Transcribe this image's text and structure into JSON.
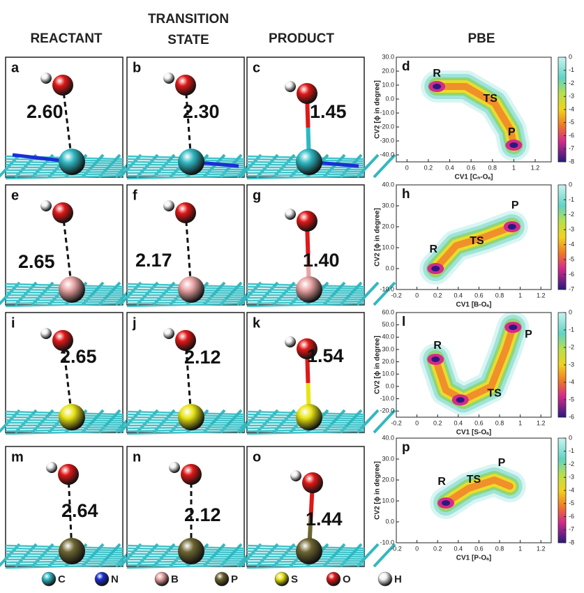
{
  "figure": {
    "headers": [
      "REACTANT",
      "TRANSITION STATE",
      "PRODUCT",
      "PBE"
    ],
    "rows": [
      {
        "panels": [
          {
            "letter": "a",
            "distance": "2.60"
          },
          {
            "letter": "b",
            "distance": "2.30"
          },
          {
            "letter": "c",
            "distance": "1.45"
          }
        ]
      },
      {
        "panels": [
          {
            "letter": "e",
            "distance": "2.65"
          },
          {
            "letter": "f",
            "distance": "2.17"
          },
          {
            "letter": "g",
            "distance": "1.40"
          }
        ]
      },
      {
        "panels": [
          {
            "letter": "i",
            "distance": "2.65"
          },
          {
            "letter": "j",
            "distance": "2.12"
          },
          {
            "letter": "k",
            "distance": "1.54"
          }
        ]
      },
      {
        "panels": [
          {
            "letter": "m",
            "distance": "2.64"
          },
          {
            "letter": "n",
            "distance": "2.12"
          },
          {
            "letter": "o",
            "distance": "1.44"
          }
        ]
      }
    ],
    "legend": [
      {
        "symbol": "C",
        "color": "#2fb8c2"
      },
      {
        "symbol": "N",
        "color": "#1a2fd6"
      },
      {
        "symbol": "B",
        "color": "#e9a3a3"
      },
      {
        "symbol": "P",
        "color": "#6d6531"
      },
      {
        "symbol": "S",
        "color": "#e8e414"
      },
      {
        "symbol": "O",
        "color": "#e01818"
      },
      {
        "symbol": "H",
        "color": "#f2f2f2"
      }
    ]
  },
  "chart_data": [
    {
      "type": "contour",
      "letter": "d",
      "xlabel": "CV1 [Cₙ-Oₐ]",
      "ylabel": "CV2 [ϕ in degree]",
      "xlim": [
        -0.1,
        1.35
      ],
      "xticks": [
        0,
        0.2,
        0.4,
        0.6,
        0.8,
        1,
        1.2
      ],
      "ylim": [
        -45,
        30
      ],
      "yticks": [
        {
          "value": 30,
          "label": "30.0"
        },
        {
          "value": 20,
          "label": "20.0"
        },
        {
          "value": 10,
          "label": "10.0"
        },
        {
          "value": 0,
          "label": "0.0"
        },
        {
          "value": -10,
          "label": "-10.0"
        },
        {
          "value": -20,
          "label": "-20.0"
        },
        {
          "value": -30,
          "label": "-30.0"
        },
        {
          "value": -40,
          "label": "-40.0"
        }
      ],
      "clim": [
        -8,
        0
      ],
      "cticks": [
        0,
        -1,
        -2,
        -3,
        -4,
        -5,
        -6,
        -7,
        -8
      ],
      "annotations": [
        "R",
        "TS",
        "P"
      ]
    },
    {
      "type": "contour",
      "letter": "h",
      "xlabel": "CV1 [B-Oₐ]",
      "ylabel": "CV2 [ϕ in degree]",
      "xlim": [
        -0.2,
        1.3
      ],
      "xticks": [
        -0.2,
        0,
        0.2,
        0.4,
        0.6,
        0.8,
        1,
        1.2
      ],
      "ylim": [
        -10,
        40
      ],
      "yticks": [
        {
          "value": 40,
          "label": "40.0"
        },
        {
          "value": 30,
          "label": "30.0"
        },
        {
          "value": 20,
          "label": "20.0"
        },
        {
          "value": 10,
          "label": "10.0"
        },
        {
          "value": 0,
          "label": "0.0"
        },
        {
          "value": -10,
          "label": "-10.0"
        }
      ],
      "clim": [
        -7,
        0
      ],
      "cticks": [
        0,
        -1,
        -2,
        -3,
        -4,
        -5,
        -6,
        -7
      ],
      "annotations": [
        "R",
        "TS",
        "P"
      ]
    },
    {
      "type": "contour",
      "letter": "l",
      "xlabel": "CV1 [S-Oₐ]",
      "ylabel": "CV2 [ϕ in degree]",
      "xlim": [
        -0.2,
        1.3
      ],
      "xticks": [
        -0.2,
        0,
        0.2,
        0.4,
        0.6,
        0.8,
        1,
        1.2
      ],
      "ylim": [
        -25,
        60
      ],
      "yticks": [
        {
          "value": 60,
          "label": "60.0"
        },
        {
          "value": 50,
          "label": "50.0"
        },
        {
          "value": 40,
          "label": "40.0"
        },
        {
          "value": 30,
          "label": "30.0"
        },
        {
          "value": 20,
          "label": "20.0"
        },
        {
          "value": 10,
          "label": "10.0"
        },
        {
          "value": 0,
          "label": "0.0"
        },
        {
          "value": -10,
          "label": "-10.0"
        },
        {
          "value": -20,
          "label": "-20.0"
        }
      ],
      "clim": [
        -6,
        0
      ],
      "cticks": [
        0,
        -1,
        -2,
        -3,
        -4,
        -5,
        -6
      ],
      "annotations": [
        "R",
        "TS",
        "P"
      ]
    },
    {
      "type": "contour",
      "letter": "p",
      "xlabel": "CV1 [P-Oₐ]",
      "ylabel": "CV2 [ϕ in degree]",
      "xlim": [
        -0.2,
        1.3
      ],
      "xticks": [
        -0.2,
        0,
        0.2,
        0.4,
        0.6,
        0.8,
        1,
        1.2
      ],
      "ylim": [
        -10,
        40
      ],
      "yticks": [
        {
          "value": 40,
          "label": "40.0"
        },
        {
          "value": 30,
          "label": "30.0"
        },
        {
          "value": 20,
          "label": "20.0"
        },
        {
          "value": 10,
          "label": "10.0"
        },
        {
          "value": 0,
          "label": "0.0"
        },
        {
          "value": -10,
          "label": "-10.0"
        }
      ],
      "clim": [
        -8,
        0
      ],
      "cticks": [
        0,
        -1,
        -2,
        -3,
        -4,
        -5,
        -6,
        -7,
        -8
      ],
      "annotations": [
        "R",
        "TS",
        "P"
      ]
    }
  ]
}
